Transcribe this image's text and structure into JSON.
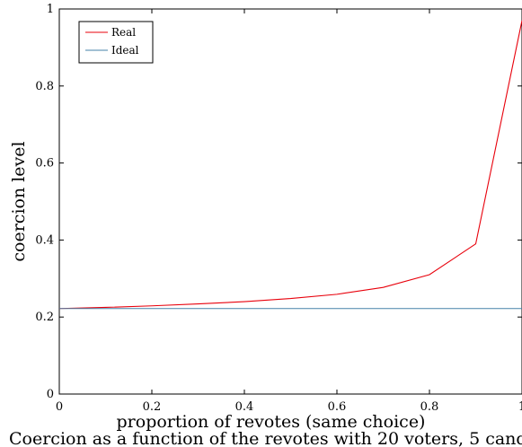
{
  "caption": "Coercion as a function of the revotes with 20 voters, 5 cand",
  "chart_data": {
    "type": "line",
    "xlabel": "proportion of revotes (same choice)",
    "ylabel": "coercion level",
    "xlim": [
      0,
      1
    ],
    "ylim": [
      0,
      1
    ],
    "xticks": [
      0,
      0.2,
      0.4,
      0.6,
      0.8,
      1
    ],
    "yticks": [
      0,
      0.2,
      0.4,
      0.6,
      0.8,
      1
    ],
    "xtick_labels": [
      "0",
      "0.2",
      "0.4",
      "0.6",
      "0.8",
      "1"
    ],
    "ytick_labels": [
      "0",
      "0.2",
      "0.4",
      "0.6",
      "0.8",
      "1"
    ],
    "grid": false,
    "legend_position": "top-left",
    "series": [
      {
        "name": "Real",
        "color": "#e8000b",
        "x": [
          0,
          0.1,
          0.2,
          0.3,
          0.4,
          0.5,
          0.6,
          0.7,
          0.8,
          0.9,
          1.0
        ],
        "y": [
          0.222,
          0.225,
          0.229,
          0.234,
          0.24,
          0.248,
          0.259,
          0.277,
          0.31,
          0.39,
          0.97
        ]
      },
      {
        "name": "Ideal",
        "color": "#4682a8",
        "x": [
          0,
          1.0
        ],
        "y": [
          0.222,
          0.222
        ]
      }
    ]
  }
}
